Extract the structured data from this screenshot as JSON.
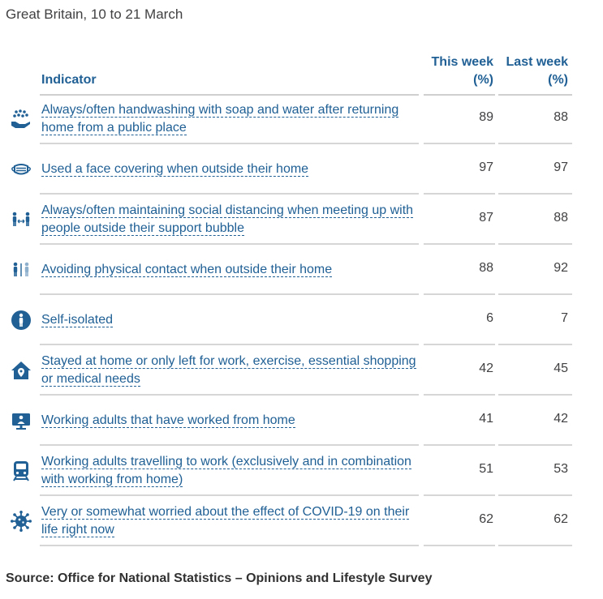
{
  "subtitle": "Great Britain, 10 to 21 March",
  "source": "Source: Office for National Statistics – Opinions and Lifestyle Survey",
  "colors": {
    "accent": "#206095",
    "divider": "#d6d6d6"
  },
  "chart_data": {
    "type": "table",
    "columns": [
      "Indicator",
      "This week (%)",
      "Last week (%)"
    ],
    "rows": [
      {
        "icon": "handwashing-icon",
        "indicator": "Always/often handwashing with soap and water after returning home from a public place",
        "this_week": 89,
        "last_week": 88
      },
      {
        "icon": "face-mask-icon",
        "indicator": "Used a face covering when outside their home",
        "this_week": 97,
        "last_week": 97
      },
      {
        "icon": "social-distancing-icon",
        "indicator": "Always/often maintaining social distancing when meeting up with people outside their support bubble",
        "this_week": 87,
        "last_week": 88
      },
      {
        "icon": "avoid-contact-icon",
        "indicator": "Avoiding physical contact when outside their home",
        "this_week": 88,
        "last_week": 92
      },
      {
        "icon": "self-isolate-icon",
        "indicator": "Self-isolated",
        "this_week": 6,
        "last_week": 7
      },
      {
        "icon": "home-pin-icon",
        "indicator": "Stayed at home or only left for work, exercise, essential shopping or medical needs",
        "this_week": 42,
        "last_week": 45
      },
      {
        "icon": "work-from-home-icon",
        "indicator": "Working adults that have worked from home",
        "this_week": 41,
        "last_week": 42
      },
      {
        "icon": "train-icon",
        "indicator": "Working adults travelling to work (exclusively and in combination with working from home)",
        "this_week": 51,
        "last_week": 53
      },
      {
        "icon": "virus-icon",
        "indicator": "Very or somewhat worried about the effect of COVID-19 on their life right now",
        "this_week": 62,
        "last_week": 62
      }
    ]
  }
}
